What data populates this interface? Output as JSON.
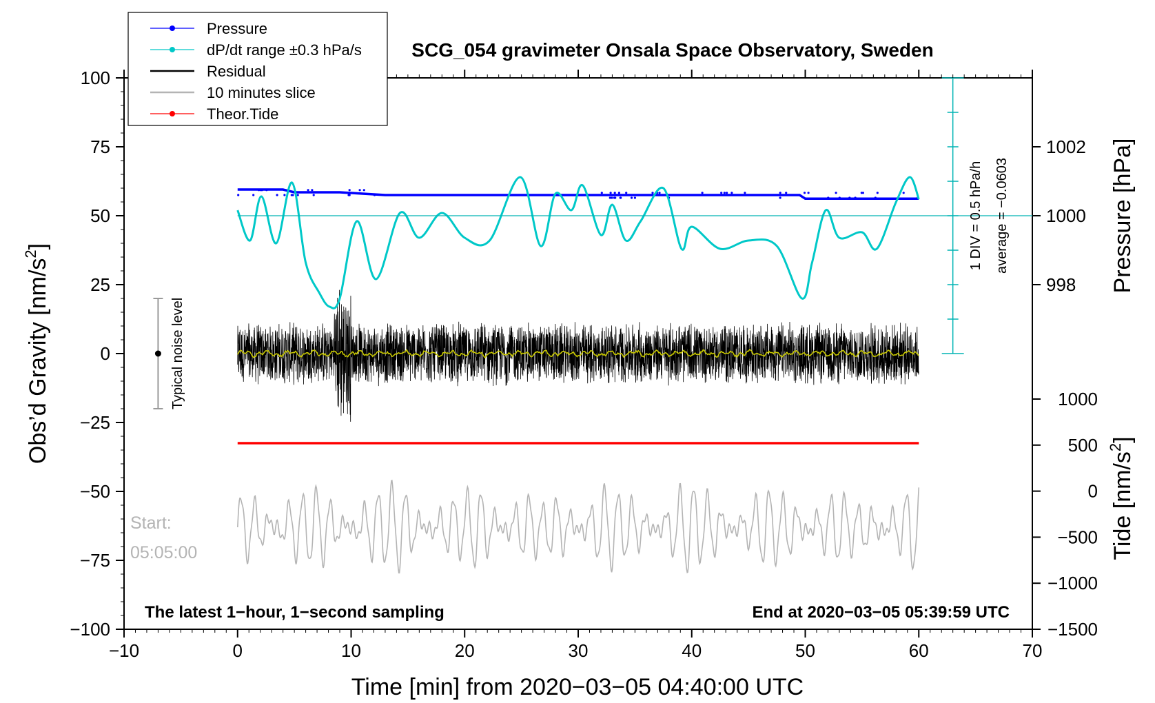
{
  "chart_data": {
    "type": "line",
    "title": "SCG_054 gravimeter Onsala Space Observatory, Sweden",
    "xlabel": "Time [min] from 2020−03−05 04:40:00 UTC",
    "ylabel_left": "Obs’d Gravity [nm/s",
    "ylabel_left_sup": "2",
    "ylabel_left_end": "]",
    "ylabel_right_pressure": "Pressure [hPa]",
    "ylabel_right_tide": "Tide [nm/s",
    "ylabel_right_tide_sup": "2",
    "ylabel_right_tide_end": "]",
    "xlim": [
      -10,
      70
    ],
    "ylim_left": [
      -100,
      100
    ],
    "x_ticks": [
      "−10",
      "0",
      "10",
      "20",
      "30",
      "40",
      "50",
      "60",
      "70"
    ],
    "y_ticks_left": [
      "100",
      "75",
      "50",
      "25",
      "0",
      "−25",
      "−50",
      "−75",
      "−100"
    ],
    "pressure_ticks": [
      "1002",
      "1000",
      "998"
    ],
    "tide_ticks": [
      "1000",
      "500",
      "0",
      "−500",
      "−1000",
      "−1500"
    ],
    "legend": [
      {
        "label": "Pressure",
        "color": "#0000ff"
      },
      {
        "label": "dP/dt range ±0.3 hPa/s",
        "color": "#00c8c8"
      },
      {
        "label": "Residual",
        "color": "#000000"
      },
      {
        "label": "10 minutes slice",
        "color": "#b4b4b4"
      },
      {
        "label": "Theor.Tide",
        "color": "#ff0000"
      }
    ],
    "series": [
      {
        "name": "Pressure",
        "color": "#0000ff",
        "x": [
          0,
          4,
          5,
          9,
          13,
          20,
          30,
          40,
          49.5,
          50,
          55,
          60
        ],
        "values": [
          59.5,
          59.5,
          58.5,
          58.5,
          57.5,
          57.5,
          57.5,
          57.5,
          57.5,
          56.2,
          56.2,
          56.2
        ]
      },
      {
        "name": "dP/dt",
        "color": "#00c8c8",
        "x": [
          0,
          1.1,
          2.1,
          3.4,
          4.8,
          6,
          7.2,
          8.1,
          9,
          10.5,
          12.2,
          14.3,
          16,
          18,
          20,
          22.2,
          24.9,
          26.7,
          28,
          29.4,
          30.4,
          32,
          33,
          34.2,
          35.5,
          37.5,
          39.1,
          40,
          42.5,
          45,
          47.5,
          49.7,
          50.6,
          51.8,
          53,
          55,
          56.3,
          58,
          59.2,
          60
        ],
        "values": [
          52,
          41,
          57,
          40,
          62,
          33,
          22,
          17,
          20,
          48,
          27,
          51,
          42,
          51,
          42,
          41,
          64,
          39,
          58,
          52,
          61,
          43,
          54,
          41,
          48,
          60,
          38,
          46,
          38,
          41,
          39,
          20,
          33,
          52,
          42,
          44,
          38,
          55,
          64,
          56
        ]
      },
      {
        "name": "Theor.Tide",
        "color": "#ff0000",
        "x": [
          0,
          60
        ],
        "values": [
          -32.5,
          -32.5
        ]
      }
    ],
    "pressure_axis": {
      "bracket_x": 63,
      "top": 100,
      "bottom": 0,
      "reference_y": 50,
      "div_label": "1 DIV = 0.5 hPa/h",
      "avg_label": "average = −0.0603"
    },
    "noise_bar": {
      "x": -7,
      "low": -20,
      "high": 20,
      "center": 0,
      "label": "Typical noise level"
    },
    "slice_label": {
      "line1": "Start:",
      "line2": "05:05:00"
    },
    "footer_left": "The latest 1−hour, 1−second sampling",
    "footer_right": "End at 2020−03−05 05:39:59 UTC"
  }
}
